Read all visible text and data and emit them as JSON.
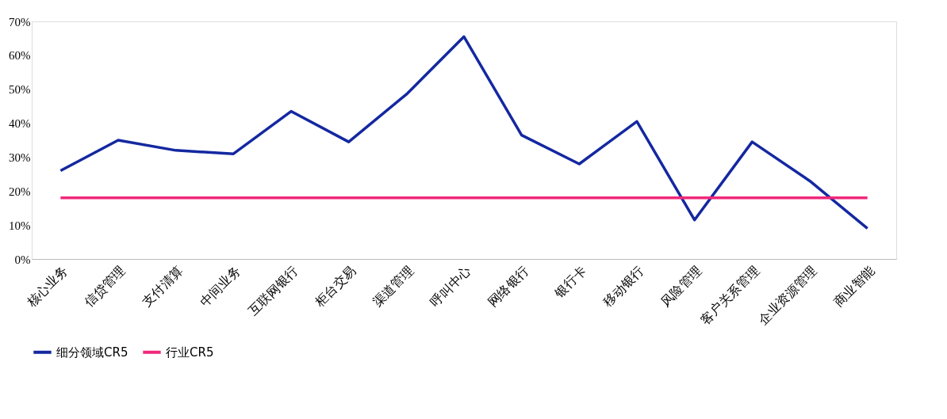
{
  "chart_data": {
    "type": "line",
    "categories": [
      "核心业务",
      "信贷管理",
      "支付清算",
      "中间业务",
      "互联网银行",
      "柜台交易",
      "渠道管理",
      "呼叫中心",
      "网络银行",
      "银行卡",
      "移动银行",
      "风险管理",
      "客户关系管理",
      "企业资源管理",
      "商业智能"
    ],
    "series": [
      {
        "name": "细分领域CR5",
        "color": "#1428a0",
        "values": [
          26,
          35,
          32,
          31,
          43.5,
          34.5,
          48.5,
          65.5,
          36.5,
          28,
          40.5,
          11.5,
          34.5,
          23,
          9
        ]
      },
      {
        "name": "行业CR5",
        "color": "#f0287a",
        "values": [
          18,
          18,
          18,
          18,
          18,
          18,
          18,
          18,
          18,
          18,
          18,
          18,
          18,
          18,
          18
        ]
      }
    ],
    "ylim": [
      0,
      70
    ],
    "yticks": [
      {
        "value": 0,
        "label": "0%"
      },
      {
        "value": 10,
        "label": "10%"
      },
      {
        "value": 20,
        "label": "20%"
      },
      {
        "value": 30,
        "label": "30%"
      },
      {
        "value": 40,
        "label": "40%"
      },
      {
        "value": 50,
        "label": "50%"
      },
      {
        "value": 60,
        "label": "60%"
      },
      {
        "value": 70,
        "label": "70%"
      }
    ],
    "grid": false,
    "legend": "bottom",
    "marker": "none",
    "line_style": "solid"
  }
}
